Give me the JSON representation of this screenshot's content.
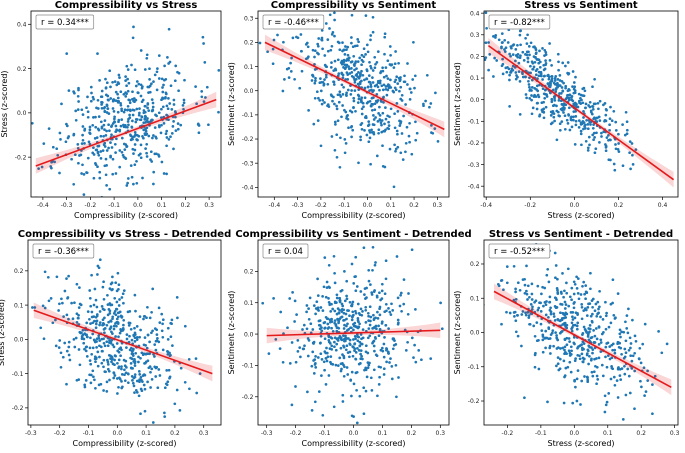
{
  "chart_data": [
    {
      "type": "scatter",
      "title": "Compressibility vs Stress",
      "xlabel": "Compressibility (z-scored)",
      "ylabel": "Stress (z-scored)",
      "annotation": "r = 0.34***",
      "xlim": [
        -0.45,
        0.35
      ],
      "ylim": [
        -0.38,
        0.46
      ],
      "xticks": [
        "-0.4",
        "-0.3",
        "-0.2",
        "-0.1",
        "0.0",
        "0.1",
        "0.2",
        "0.3"
      ],
      "xtick_values": [
        -0.4,
        -0.3,
        -0.2,
        -0.1,
        0.0,
        0.1,
        0.2,
        0.3
      ],
      "yticks": [
        "-0.2",
        "0.0",
        "0.2",
        "0.4"
      ],
      "ytick_values": [
        -0.2,
        0.0,
        0.2,
        0.4
      ],
      "r": 0.34,
      "fit": {
        "x": [
          -0.43,
          0.33
        ],
        "y": [
          -0.24,
          0.06
        ]
      },
      "cloud": {
        "center": [
          -0.05,
          -0.03
        ],
        "sx": 0.14,
        "sy": 0.14,
        "n": 520,
        "seed": 11
      },
      "point_color": "#1f77b4",
      "fit_color": "#e41a1c"
    },
    {
      "type": "scatter",
      "title": "Compressibility vs Sentiment",
      "xlabel": "Compressibility (z-scored)",
      "ylabel": "Sentiment (z-scored)",
      "annotation": "r = -0.46***",
      "xlim": [
        -0.47,
        0.35
      ],
      "ylim": [
        -0.44,
        0.33
      ],
      "xticks": [
        "-0.4",
        "-0.3",
        "-0.2",
        "-0.1",
        "0.0",
        "0.1",
        "0.2",
        "0.3"
      ],
      "xtick_values": [
        -0.4,
        -0.3,
        -0.2,
        -0.1,
        0.0,
        0.1,
        0.2,
        0.3
      ],
      "yticks": [
        "-0.4",
        "-0.3",
        "-0.2",
        "-0.1",
        "0.0",
        "0.1",
        "0.2",
        "0.3"
      ],
      "ytick_values": [
        -0.4,
        -0.3,
        -0.2,
        -0.1,
        0.0,
        0.1,
        0.2,
        0.3
      ],
      "r": -0.46,
      "fit": {
        "x": [
          -0.44,
          0.33
        ],
        "y": [
          0.2,
          -0.16
        ]
      },
      "cloud": {
        "center": [
          -0.05,
          0.02
        ],
        "sx": 0.14,
        "sy": 0.14,
        "n": 520,
        "seed": 23
      },
      "point_color": "#1f77b4",
      "fit_color": "#e41a1c"
    },
    {
      "type": "scatter",
      "title": "Stress vs Sentiment",
      "xlabel": "Stress (z-scored)",
      "ylabel": "Sentiment (z-scored)",
      "annotation": "r = -0.82***",
      "xlim": [
        -0.41,
        0.47
      ],
      "ylim": [
        -0.45,
        0.41
      ],
      "xticks": [
        "-0.4",
        "-0.2",
        "0.0",
        "0.2",
        "0.4"
      ],
      "xtick_values": [
        -0.4,
        -0.2,
        0.0,
        0.2,
        0.4
      ],
      "yticks": [
        "-0.4",
        "-0.3",
        "-0.2",
        "-0.1",
        "0.0",
        "0.1",
        "0.2",
        "0.3",
        "0.4"
      ],
      "ytick_values": [
        -0.4,
        -0.3,
        -0.2,
        -0.1,
        0.0,
        0.1,
        0.2,
        0.3,
        0.4
      ],
      "r": -0.82,
      "fit": {
        "x": [
          -0.39,
          0.45
        ],
        "y": [
          0.25,
          -0.37
        ]
      },
      "cloud": {
        "center": [
          -0.08,
          0.04
        ],
        "sx": 0.15,
        "sy": 0.14,
        "n": 520,
        "seed": 37
      },
      "point_color": "#1f77b4",
      "fit_color": "#e41a1c"
    },
    {
      "type": "scatter",
      "title": "Compressibility vs Stress - Detrended",
      "xlabel": "Compressibility (z-scored)",
      "ylabel": "Stress (z-scored)",
      "annotation": "r = -0.36***",
      "xlim": [
        -0.31,
        0.36
      ],
      "ylim": [
        -0.25,
        0.29
      ],
      "xticks": [
        "-0.3",
        "-0.2",
        "-0.1",
        "0.0",
        "0.1",
        "0.2",
        "0.3"
      ],
      "xtick_values": [
        -0.3,
        -0.2,
        -0.1,
        0.0,
        0.1,
        0.2,
        0.3
      ],
      "yticks": [
        "-0.2",
        "-0.1",
        "0.0",
        "0.1",
        "0.2"
      ],
      "ytick_values": [
        -0.2,
        -0.1,
        0.0,
        0.1,
        0.2
      ],
      "r": -0.36,
      "fit": {
        "x": [
          -0.29,
          0.33
        ],
        "y": [
          0.085,
          -0.1
        ]
      },
      "cloud": {
        "center": [
          0.0,
          -0.01
        ],
        "sx": 0.11,
        "sy": 0.09,
        "n": 520,
        "seed": 41
      },
      "point_color": "#1f77b4",
      "fit_color": "#e41a1c"
    },
    {
      "type": "scatter",
      "title": "Compressibility vs Sentiment - Detrended",
      "xlabel": "Compressibility (z-scored)",
      "ylabel": "Sentiment (z-scored)",
      "annotation": "r = 0.04",
      "xlim": [
        -0.33,
        0.33
      ],
      "ylim": [
        -0.29,
        0.3
      ],
      "xticks": [
        "-0.3",
        "-0.2",
        "-0.1",
        "0.0",
        "0.1",
        "0.2",
        "0.3"
      ],
      "xtick_values": [
        -0.3,
        -0.2,
        -0.1,
        0.0,
        0.1,
        0.2,
        0.3
      ],
      "yticks": [
        "-0.2",
        "-0.1",
        "0.0",
        "0.1",
        "0.2"
      ],
      "ytick_values": [
        -0.2,
        -0.1,
        0.0,
        0.1,
        0.2
      ],
      "r": 0.04,
      "fit": {
        "x": [
          -0.3,
          0.3
        ],
        "y": [
          -0.005,
          0.012
        ]
      },
      "cloud": {
        "center": [
          0.0,
          0.0
        ],
        "sx": 0.11,
        "sy": 0.1,
        "n": 520,
        "seed": 53
      },
      "point_color": "#1f77b4",
      "fit_color": "#e41a1c"
    },
    {
      "type": "scatter",
      "title": "Stress vs Sentiment - Detrended",
      "xlabel": "Stress (z-scored)",
      "ylabel": "Sentiment (z-scored)",
      "annotation": "r = -0.52***",
      "xlim": [
        -0.27,
        0.31
      ],
      "ylim": [
        -0.27,
        0.27
      ],
      "xticks": [
        "-0.2",
        "-0.1",
        "0.0",
        "0.1",
        "0.2",
        "0.3"
      ],
      "xtick_values": [
        -0.2,
        -0.1,
        0.0,
        0.1,
        0.2,
        0.3
      ],
      "yticks": [
        "-0.2",
        "-0.1",
        "0.0",
        "0.1",
        "0.2"
      ],
      "ytick_values": [
        -0.2,
        -0.1,
        0.0,
        0.1,
        0.2
      ],
      "r": -0.52,
      "fit": {
        "x": [
          -0.24,
          0.29
        ],
        "y": [
          0.12,
          -0.16
        ]
      },
      "cloud": {
        "center": [
          0.0,
          0.0
        ],
        "sx": 0.1,
        "sy": 0.09,
        "n": 520,
        "seed": 67
      },
      "point_color": "#1f77b4",
      "fit_color": "#e41a1c"
    }
  ]
}
